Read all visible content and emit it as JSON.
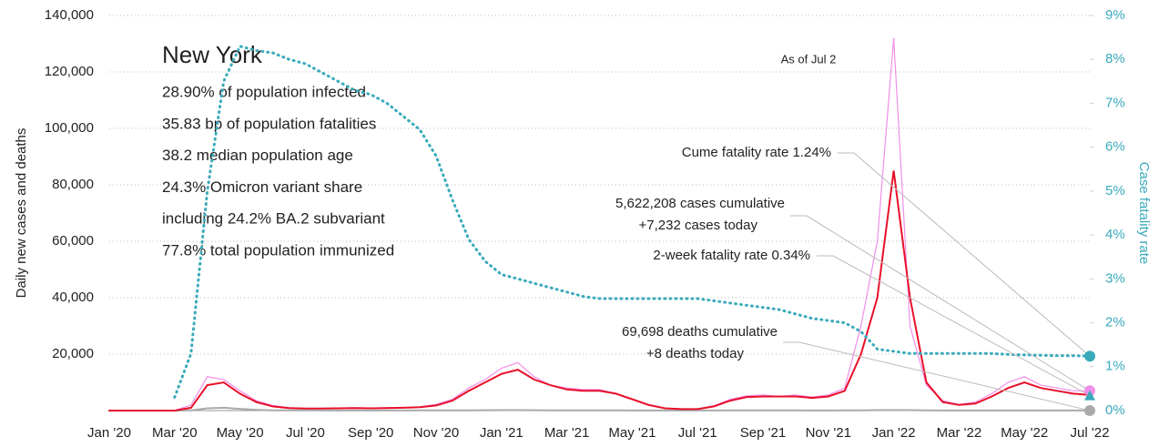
{
  "chart_data": {
    "type": "line",
    "title": "New York",
    "info_lines": [
      "28.90% of population infected",
      "35.83 bp of population fatalities",
      "38.2 median population age",
      "24.3% Omicron variant share",
      "including 24.2% BA.2 subvariant",
      "77.8% total population immunized"
    ],
    "as_of": "As of Jul 2",
    "annotations": [
      "Cume fatality rate 1.24%",
      "5,622,208 cases cumulative",
      "+7,232 cases today",
      "2-week fatality rate 0.34%",
      "69,698 deaths cumulative",
      "+8 deaths today"
    ],
    "ylabel": "Daily new cases and deaths",
    "y2label": "Case fatality rate",
    "categories": [
      "Jan '20",
      null,
      null,
      null,
      "Mar '20",
      null,
      null,
      null,
      "May '20",
      null,
      null,
      null,
      "Jul '20",
      null,
      null,
      null,
      "Sep '20",
      null,
      null,
      null,
      "Nov '20",
      null,
      null,
      null,
      "Jan '21",
      null,
      null,
      null,
      "Mar '21",
      null,
      null,
      null,
      "May '21",
      null,
      null,
      null,
      "Jul '21",
      null,
      null,
      null,
      "Sep '21",
      null,
      null,
      null,
      "Nov '21",
      null,
      null,
      null,
      "Jan '22",
      null,
      null,
      null,
      "Mar '22",
      null,
      null,
      null,
      "May '22",
      null,
      null,
      null,
      "Jul '22"
    ],
    "ylim": [
      0,
      140000
    ],
    "yticks": [
      {
        "value": 20000,
        "label": "20,000"
      },
      {
        "value": 40000,
        "label": "40,000"
      },
      {
        "value": 60000,
        "label": "60,000"
      },
      {
        "value": 80000,
        "label": "80,000"
      },
      {
        "value": 100000,
        "label": "100,000"
      },
      {
        "value": 120000,
        "label": "120,000"
      },
      {
        "value": 140000,
        "label": "140,000"
      }
    ],
    "y2lim": [
      0,
      9
    ],
    "y2ticks": [
      {
        "value": 0,
        "label": "0%"
      },
      {
        "value": 1,
        "label": "1%"
      },
      {
        "value": 2,
        "label": "2%"
      },
      {
        "value": 3,
        "label": "3%"
      },
      {
        "value": 4,
        "label": "4%"
      },
      {
        "value": 5,
        "label": "5%"
      },
      {
        "value": 6,
        "label": "6%"
      },
      {
        "value": 7,
        "label": "7%"
      },
      {
        "value": 8,
        "label": "8%"
      },
      {
        "value": 9,
        "label": "9%"
      }
    ],
    "grid": true,
    "two_week_fatality_rate": 0.34,
    "series": [
      {
        "color": "#f08ee8",
        "width": 1.2,
        "values": [
          0,
          0,
          0,
          0,
          0,
          2000,
          12000,
          11000,
          7000,
          3500,
          1800,
          1000,
          800,
          800,
          900,
          1000,
          900,
          1000,
          1100,
          1300,
          2200,
          4000,
          8000,
          11000,
          15000,
          17000,
          12000,
          9000,
          8000,
          7500,
          7500,
          6000,
          4200,
          2200,
          900,
          600,
          600,
          1700,
          4000,
          5200,
          5500,
          5000,
          5500,
          4800,
          5500,
          8000,
          30000,
          60000,
          132000,
          30000,
          9000,
          3500,
          2200,
          3000,
          6000,
          10000,
          12000,
          9000,
          8000,
          7000,
          7000
        ]
      },
      {
        "color": "#e8102a",
        "width": 2,
        "values": [
          0,
          0,
          0,
          0,
          0,
          1000,
          9000,
          10000,
          6000,
          3000,
          1500,
          900,
          700,
          700,
          800,
          900,
          800,
          900,
          1000,
          1200,
          1800,
          3500,
          7000,
          10000,
          13000,
          14500,
          11000,
          9000,
          7500,
          7000,
          7000,
          6000,
          4000,
          2000,
          800,
          500,
          500,
          1500,
          3500,
          4800,
          5000,
          5000,
          5000,
          4500,
          5000,
          7000,
          20000,
          40000,
          85000,
          40000,
          10000,
          3000,
          2000,
          2500,
          5000,
          8000,
          10000,
          8000,
          7000,
          6000,
          5500
        ]
      },
      {
        "color": "#aaaaaa",
        "width": 2,
        "values": [
          0,
          0,
          0,
          0,
          0,
          100,
          800,
          1000,
          600,
          300,
          100,
          60,
          50,
          40,
          30,
          30,
          30,
          40,
          40,
          50,
          60,
          80,
          100,
          120,
          150,
          150,
          120,
          100,
          80,
          70,
          60,
          50,
          40,
          30,
          20,
          20,
          20,
          30,
          50,
          60,
          60,
          50,
          50,
          40,
          40,
          50,
          100,
          150,
          200,
          150,
          80,
          40,
          30,
          30,
          30,
          40,
          40,
          40,
          30,
          30,
          20
        ]
      },
      {
        "color": "#3aaabb",
        "width": 3,
        "dash": "1 5",
        "axis": "y2",
        "values": [
          null,
          null,
          null,
          null,
          0.3,
          1.3,
          5.0,
          7.5,
          8.3,
          8.2,
          8.15,
          8.0,
          7.9,
          7.7,
          7.5,
          7.3,
          7.2,
          7.0,
          6.7,
          6.4,
          5.8,
          4.8,
          3.9,
          3.4,
          3.1,
          3.0,
          2.9,
          2.8,
          2.7,
          2.6,
          2.55,
          2.55,
          2.55,
          2.55,
          2.55,
          2.55,
          2.55,
          2.5,
          2.45,
          2.4,
          2.35,
          2.3,
          2.2,
          2.1,
          2.05,
          2.0,
          1.8,
          1.4,
          1.35,
          1.3,
          1.3,
          1.3,
          1.3,
          1.3,
          1.3,
          1.28,
          1.27,
          1.26,
          1.25,
          1.25,
          1.24
        ]
      }
    ]
  }
}
